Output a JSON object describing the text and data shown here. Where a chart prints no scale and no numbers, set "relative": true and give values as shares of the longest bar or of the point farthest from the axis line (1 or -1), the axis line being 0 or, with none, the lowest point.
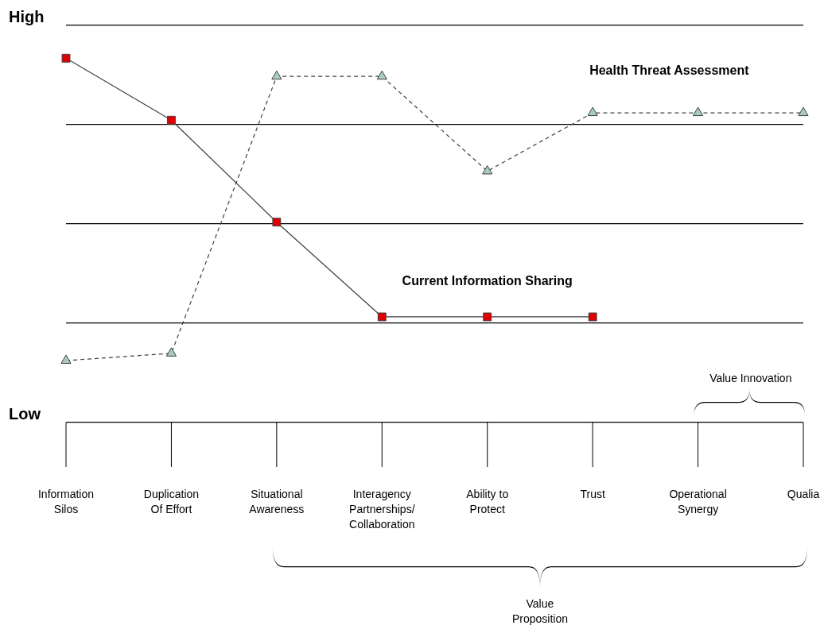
{
  "chart_data": {
    "type": "line",
    "relative": true,
    "grid": "y",
    "legend": false,
    "categories": [
      "Information Silos",
      "Duplication Of Effort",
      "Situational Awareness",
      "Interagency Partnerships/ Collaboration",
      "Ability to Protect",
      "Trust",
      "Operational Synergy",
      "Qualia"
    ],
    "series": [
      {
        "name": "Current Information Sharing",
        "color": "#e00000",
        "marker": "square",
        "line_style": "solid",
        "values": [
          1,
          0.83,
          0.55,
          0.29,
          0.29,
          0.29,
          null,
          null
        ]
      },
      {
        "name": "Health Threat Assessment",
        "color": "#a8ccc4",
        "marker": "triangle",
        "line_style": "dashed",
        "values": [
          0.17,
          0.19,
          0.95,
          0.95,
          0.69,
          0.85,
          0.85,
          0.85
        ]
      }
    ],
    "annotations": [
      "High",
      "Low",
      "Value Innovation",
      "Value Proposition"
    ]
  }
}
